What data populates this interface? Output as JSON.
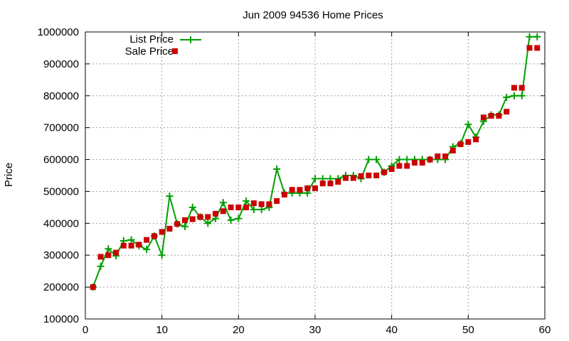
{
  "chart_data": {
    "type": "line",
    "title": "Jun 2009 94536 Home Prices",
    "xlabel": "",
    "ylabel": "Price",
    "xlim": [
      0,
      60
    ],
    "ylim": [
      100000,
      1000000
    ],
    "x_ticks": [
      0,
      10,
      20,
      30,
      40,
      50,
      60
    ],
    "y_ticks": [
      100000,
      200000,
      300000,
      400000,
      500000,
      600000,
      700000,
      800000,
      900000,
      1000000
    ],
    "grid": true,
    "legend_position": "top-left",
    "series": [
      {
        "name": "List Price",
        "style": "line with + markers",
        "color": "#00a000",
        "x": [
          1,
          2,
          3,
          4,
          5,
          6,
          7,
          8,
          9,
          10,
          11,
          12,
          13,
          14,
          15,
          16,
          17,
          18,
          19,
          20,
          21,
          22,
          23,
          24,
          25,
          26,
          27,
          28,
          29,
          30,
          31,
          32,
          33,
          34,
          35,
          36,
          37,
          38,
          39,
          40,
          41,
          42,
          43,
          44,
          45,
          46,
          47,
          48,
          49,
          50,
          51,
          52,
          53,
          54,
          55,
          56,
          57,
          58,
          59
        ],
        "values": [
          200000,
          265000,
          320000,
          298000,
          345000,
          348000,
          330000,
          318000,
          360000,
          300000,
          485000,
          398000,
          390000,
          450000,
          420000,
          400000,
          415000,
          465000,
          410000,
          415000,
          470000,
          443000,
          443000,
          450000,
          570000,
          495000,
          495000,
          495000,
          495000,
          540000,
          540000,
          540000,
          540000,
          550000,
          550000,
          540000,
          600000,
          600000,
          560000,
          580000,
          600000,
          600000,
          600000,
          600000,
          600000,
          600000,
          600000,
          640000,
          650000,
          710000,
          670000,
          720000,
          740000,
          740000,
          795000,
          800000,
          800000,
          985000,
          985000
        ]
      },
      {
        "name": "Sale Price",
        "style": "square markers",
        "color": "#cc0000",
        "x": [
          1,
          2,
          3,
          4,
          5,
          6,
          7,
          8,
          9,
          10,
          11,
          12,
          13,
          14,
          15,
          16,
          17,
          18,
          19,
          20,
          21,
          22,
          23,
          24,
          25,
          26,
          27,
          28,
          29,
          30,
          31,
          32,
          33,
          34,
          35,
          36,
          37,
          38,
          39,
          40,
          41,
          42,
          43,
          44,
          45,
          46,
          47,
          48,
          49,
          50,
          51,
          52,
          53,
          54,
          55,
          56,
          57,
          58,
          59
        ],
        "values": [
          200000,
          295000,
          300000,
          308000,
          330000,
          330000,
          333000,
          348000,
          360000,
          373000,
          383000,
          398000,
          410000,
          413000,
          420000,
          420000,
          430000,
          438000,
          450000,
          450000,
          450000,
          463000,
          460000,
          460000,
          470000,
          490000,
          505000,
          505000,
          510000,
          510000,
          525000,
          525000,
          530000,
          542000,
          542000,
          548000,
          550000,
          550000,
          560000,
          570000,
          580000,
          580000,
          590000,
          590000,
          600000,
          610000,
          610000,
          628000,
          648000,
          655000,
          663000,
          732000,
          737000,
          737000,
          750000,
          825000,
          825000,
          950000,
          950000
        ]
      }
    ]
  }
}
